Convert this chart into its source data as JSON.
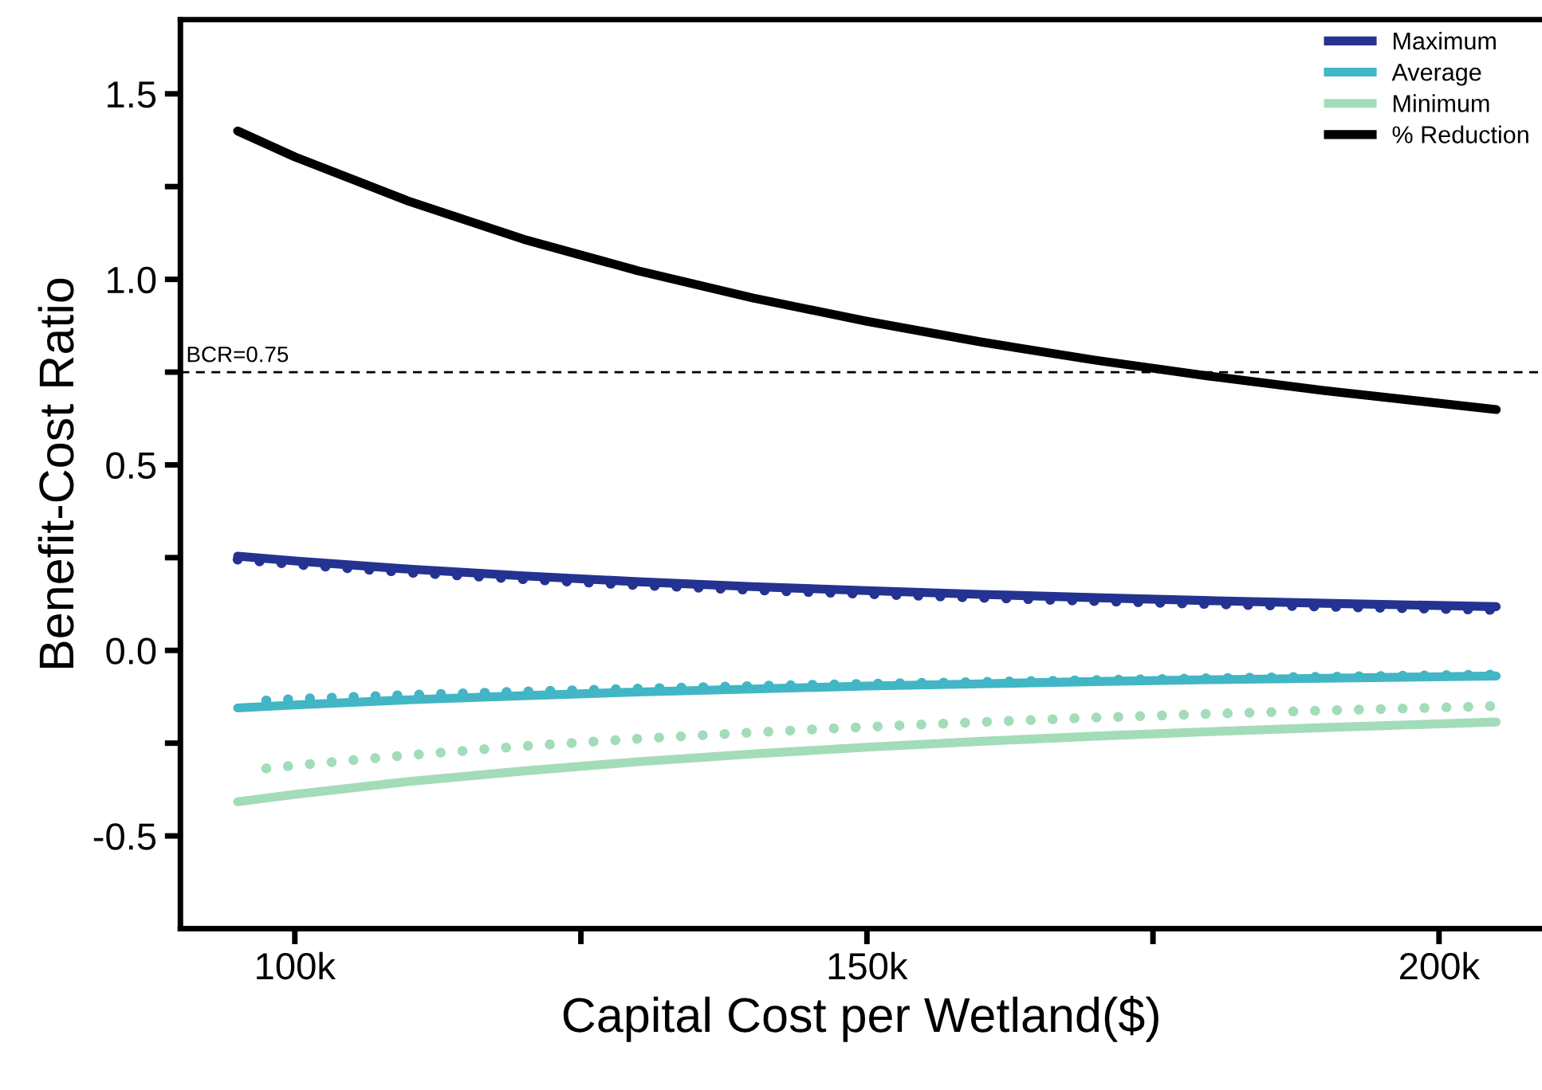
{
  "chart_data": {
    "type": "line",
    "xlabel": "Capital Cost per Wetland($)",
    "ylabel": "Benefit-Cost Ratio",
    "xlim": [
      90,
      209
    ],
    "ylim": [
      -0.75,
      1.7
    ],
    "xticks": [
      {
        "value": 100,
        "label": "100k"
      },
      {
        "value": 125,
        "label": null
      },
      {
        "value": 150,
        "label": "150k"
      },
      {
        "value": 175,
        "label": null
      },
      {
        "value": 200,
        "label": "200k"
      }
    ],
    "yticks": [
      {
        "value": -0.5,
        "label": "-0.5"
      },
      {
        "value": -0.25,
        "label": null
      },
      {
        "value": 0,
        "label": "0.0"
      },
      {
        "value": 0.25,
        "label": null
      },
      {
        "value": 0.5,
        "label": "0.5"
      },
      {
        "value": 0.75,
        "label": null
      },
      {
        "value": 1.0,
        "label": "1.0"
      },
      {
        "value": 1.25,
        "label": null
      },
      {
        "value": 1.5,
        "label": "1.5"
      }
    ],
    "grid": false,
    "legend": "top right",
    "marker": "none",
    "ref_lines": [
      {
        "axis": "y",
        "value": 0.75,
        "label": "BCR=0.75",
        "color": "#000000",
        "line_style": "dashed"
      }
    ],
    "series": [
      {
        "name": "Maximum",
        "color": "#243391",
        "line_style": "solid",
        "x": [
          95,
          100,
          110,
          120,
          130,
          140,
          150,
          160,
          170,
          180,
          190,
          205
        ],
        "values": [
          0.254,
          0.241,
          0.219,
          0.201,
          0.185,
          0.172,
          0.161,
          0.151,
          0.142,
          0.134,
          0.127,
          0.118
        ]
      },
      {
        "name": "Average",
        "color": "#42b6c4",
        "line_style": "solid",
        "x": [
          95,
          100,
          110,
          120,
          130,
          140,
          150,
          160,
          170,
          180,
          190,
          205
        ],
        "values": [
          -0.155,
          -0.147,
          -0.133,
          -0.122,
          -0.112,
          -0.104,
          -0.096,
          -0.09,
          -0.084,
          -0.079,
          -0.075,
          -0.069
        ]
      },
      {
        "name": "Minimum",
        "color": "#a3dcb8",
        "line_style": "solid",
        "x": [
          95,
          100,
          110,
          120,
          130,
          140,
          150,
          160,
          170,
          180,
          190,
          205
        ],
        "values": [
          -0.408,
          -0.388,
          -0.353,
          -0.325,
          -0.3,
          -0.279,
          -0.261,
          -0.245,
          -0.231,
          -0.219,
          -0.208,
          -0.193
        ]
      },
      {
        "name": "% Reduction",
        "color": "#000000",
        "line_style": "solid",
        "x": [
          95,
          100,
          110,
          120,
          130,
          140,
          150,
          160,
          170,
          180,
          190,
          205
        ],
        "values": [
          1.4,
          1.33,
          1.21,
          1.108,
          1.023,
          0.95,
          0.887,
          0.831,
          0.782,
          0.739,
          0.7,
          0.649
        ]
      },
      {
        "color": "#243391",
        "line_style": "dotted",
        "x": [
          95,
          100,
          110,
          120,
          130,
          140,
          150,
          160,
          170,
          180,
          190,
          205
        ],
        "values": [
          0.245,
          0.232,
          0.21,
          0.192,
          0.176,
          0.163,
          0.152,
          0.142,
          0.133,
          0.125,
          0.118,
          0.109
        ]
      },
      {
        "color": "#42b6c4",
        "line_style": "dotted",
        "x": [
          97.5,
          100,
          110,
          120,
          130,
          140,
          150,
          160,
          170,
          180,
          190,
          205
        ],
        "values": [
          -0.135,
          -0.131,
          -0.12,
          -0.111,
          -0.103,
          -0.096,
          -0.09,
          -0.085,
          -0.08,
          -0.075,
          -0.071,
          -0.065
        ]
      },
      {
        "color": "#a3dcb8",
        "line_style": "dotted",
        "x": [
          97.5,
          100,
          110,
          120,
          130,
          140,
          150,
          160,
          170,
          180,
          190,
          205
        ],
        "values": [
          -0.318,
          -0.31,
          -0.282,
          -0.258,
          -0.238,
          -0.221,
          -0.206,
          -0.193,
          -0.181,
          -0.171,
          -0.162,
          -0.15
        ]
      }
    ]
  }
}
